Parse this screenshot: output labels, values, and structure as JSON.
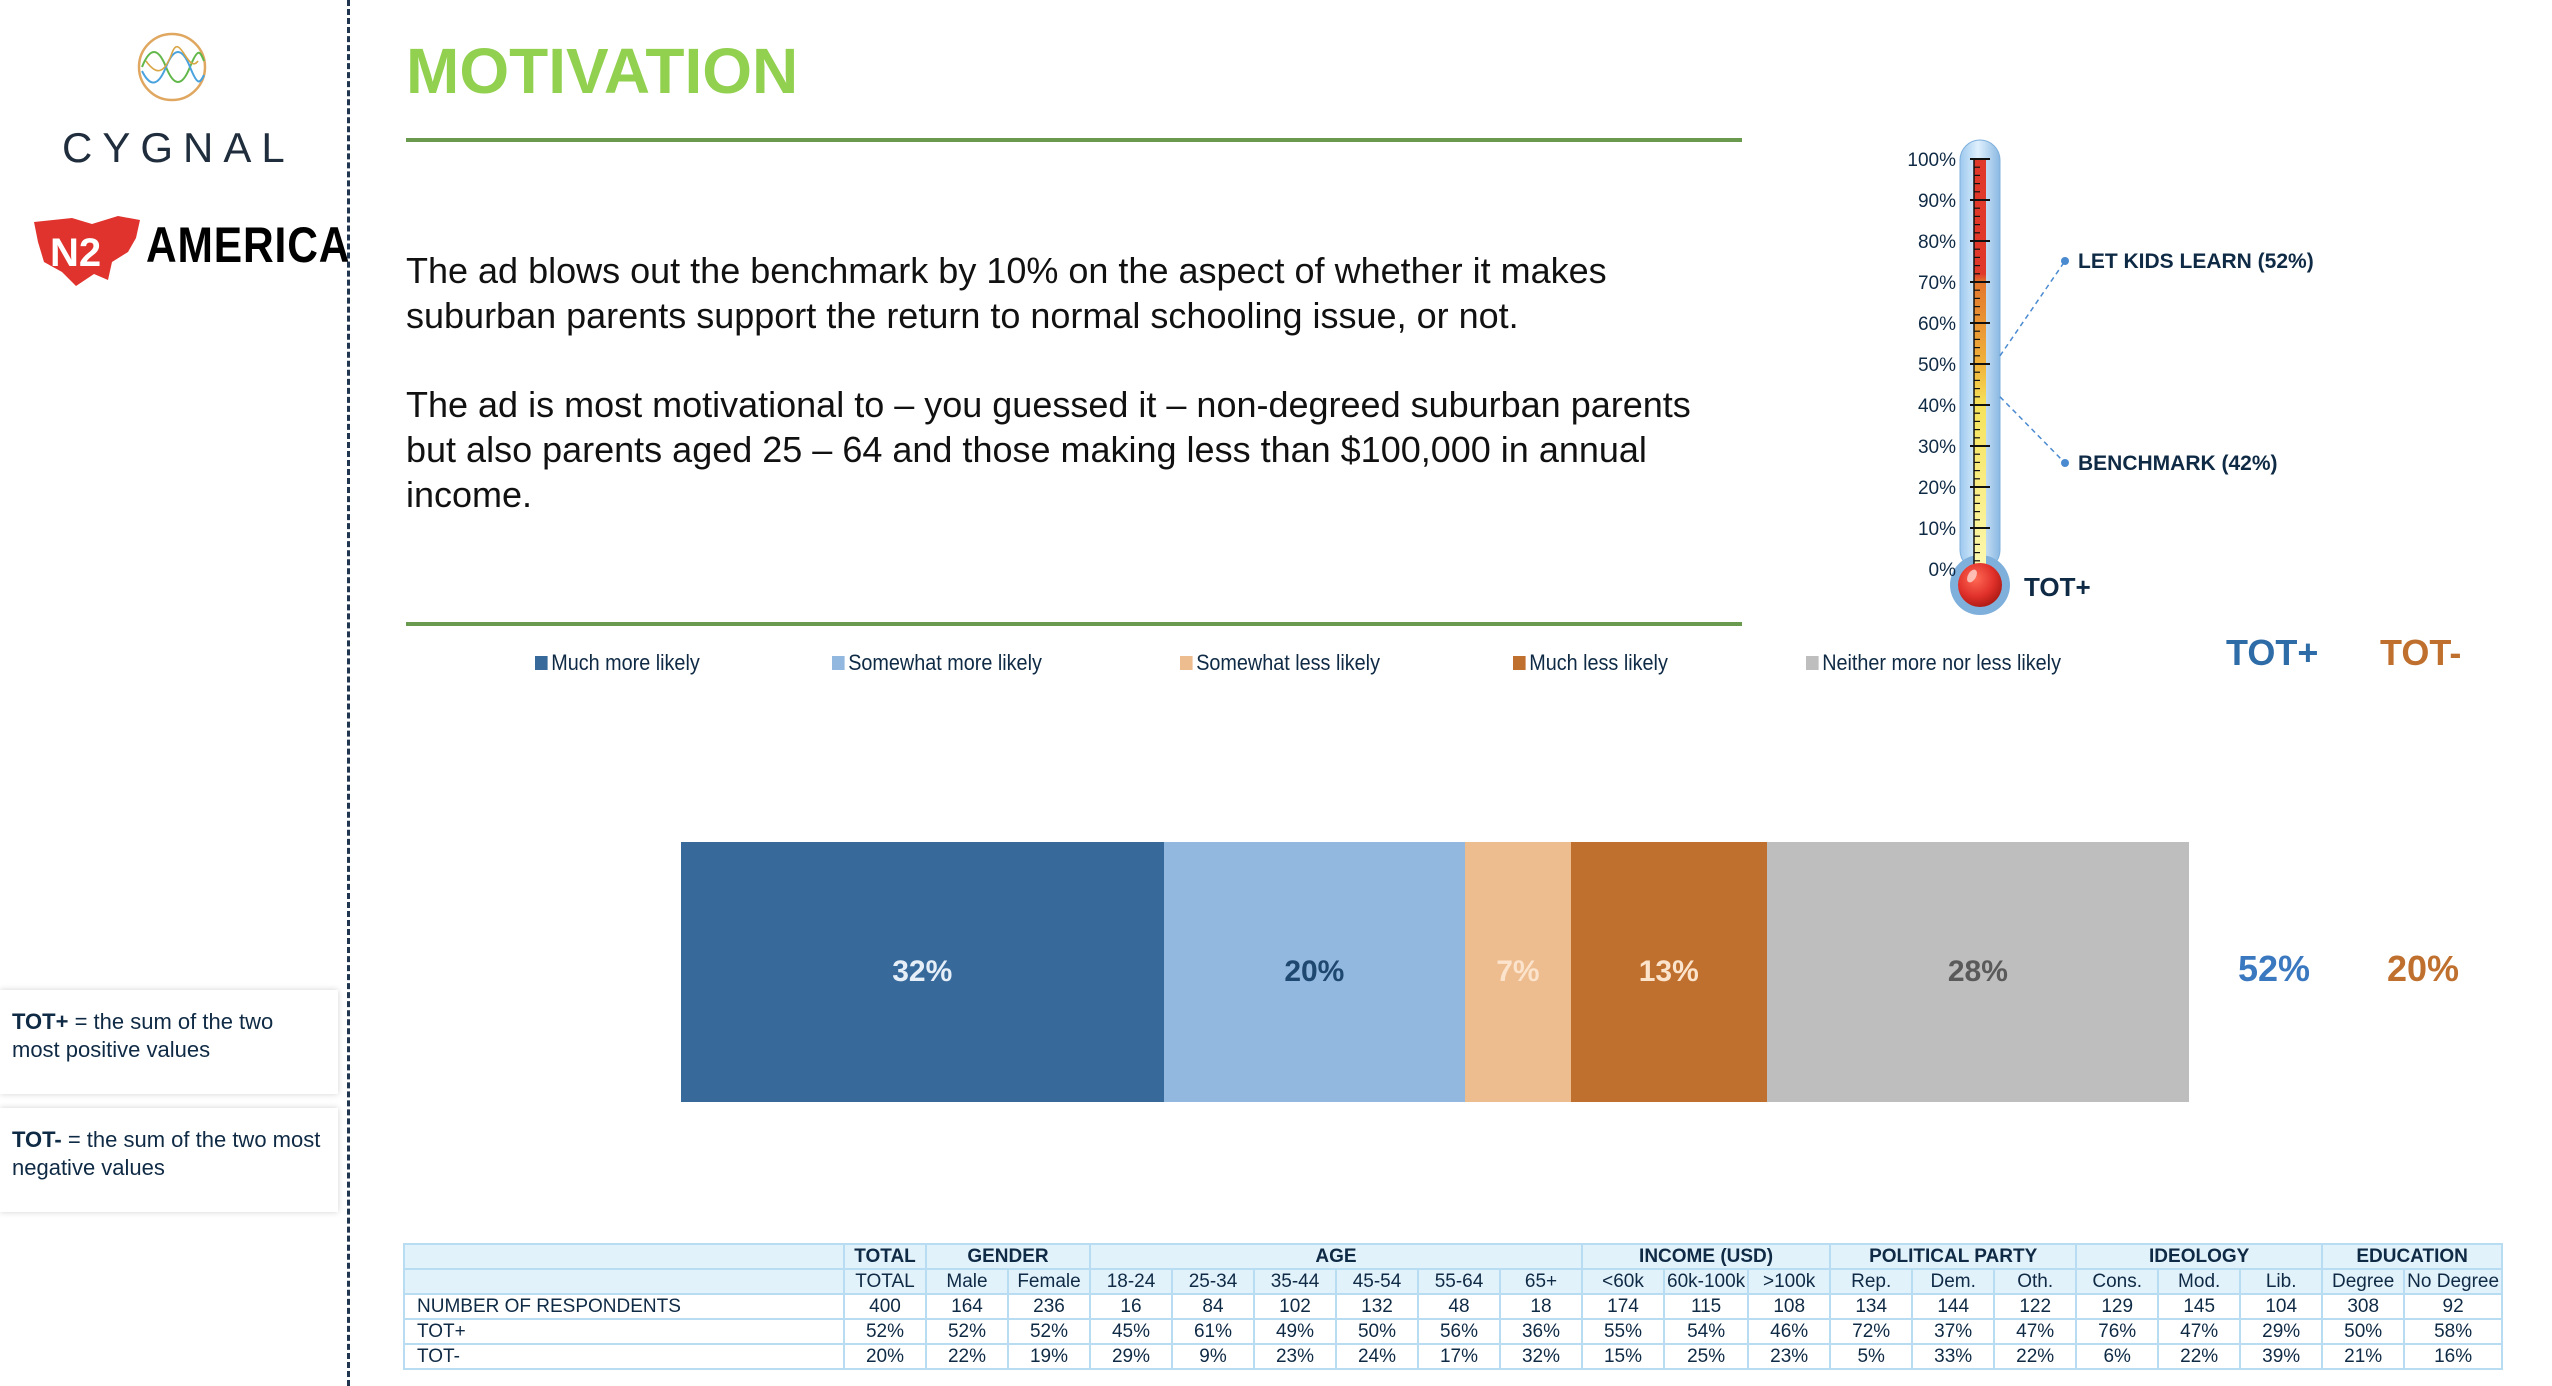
{
  "logos": {
    "cygnal": "CYGNAL",
    "n2_mark": "N2",
    "america": "AMERICA"
  },
  "title": "MOTIVATION",
  "paragraphs": [
    "The ad blows out the benchmark by 10% on the aspect of whether it makes suburban parents support the return to normal schooling issue, or not.",
    "The ad is most motivational to – you guessed it – non-degreed suburban parents but also parents aged 25 – 64 and those making less than $100,000 in annual income."
  ],
  "notes": [
    {
      "term": "TOT+",
      "text": " = the sum of the two most positive values"
    },
    {
      "term": "TOT-",
      "text": " = the sum of the two most negative values"
    }
  ],
  "colors": {
    "title_green": "#92D050",
    "much_more": "#376A9B",
    "somewhat_more": "#93B8DF",
    "somewhat_less": "#EDBC8F",
    "much_less": "#C0702E",
    "neither": "#BEBEBE",
    "tot_plus": "#3A78C0",
    "tot_minus": "#C0702E"
  },
  "chart_data": [
    {
      "type": "bar",
      "orientation": "horizontal-stacked",
      "title": "",
      "categories": [
        "Motivation"
      ],
      "series": [
        {
          "name": "Much more likely",
          "values": [
            32
          ],
          "label": "32%"
        },
        {
          "name": "Somewhat more likely",
          "values": [
            20
          ],
          "label": "20%"
        },
        {
          "name": "Somewhat less likely",
          "values": [
            7
          ],
          "label": "7%"
        },
        {
          "name": "Much less likely",
          "values": [
            13
          ],
          "label": "13%"
        },
        {
          "name": "Neither more nor less likely",
          "values": [
            28
          ],
          "label": "28%"
        }
      ],
      "legend_position": "top",
      "summary": {
        "tot_plus_label": "TOT+",
        "tot_plus_value": "52%",
        "tot_minus_label": "TOT-",
        "tot_minus_value": "20%"
      },
      "xlim": [
        0,
        100
      ]
    },
    {
      "type": "bar",
      "orientation": "thermometer",
      "ylim": [
        0,
        100
      ],
      "yticks": [
        "0%",
        "10%",
        "20%",
        "30%",
        "40%",
        "50%",
        "60%",
        "70%",
        "80%",
        "90%",
        "100%"
      ],
      "xlabel": "TOT+",
      "markers": [
        {
          "label": "LET KIDS LEARN (52%)",
          "value": 52
        },
        {
          "label": "BENCHMARK (42%)",
          "value": 42
        }
      ],
      "grid": false
    }
  ],
  "table": {
    "groups": [
      {
        "label": "",
        "span": 1
      },
      {
        "label": "TOTAL",
        "span": 1
      },
      {
        "label": "GENDER",
        "span": 2
      },
      {
        "label": "AGE",
        "span": 6
      },
      {
        "label": "INCOME (USD)",
        "span": 3
      },
      {
        "label": "POLITICAL PARTY",
        "span": 3
      },
      {
        "label": "IDEOLOGY",
        "span": 3
      },
      {
        "label": "EDUCATION",
        "span": 2
      }
    ],
    "columns": [
      "TOTAL",
      "Male",
      "Female",
      "18-24",
      "25-34",
      "35-44",
      "45-54",
      "55-64",
      "65+",
      "<60k",
      "60k-100k",
      ">100k",
      "Rep.",
      "Dem.",
      "Oth.",
      "Cons.",
      "Mod.",
      "Lib.",
      "Degree",
      "No Degree"
    ],
    "rows": [
      {
        "label": "NUMBER OF RESPONDENTS",
        "values": [
          "400",
          "164",
          "236",
          "16",
          "84",
          "102",
          "132",
          "48",
          "18",
          "174",
          "115",
          "108",
          "134",
          "144",
          "122",
          "129",
          "145",
          "104",
          "308",
          "92"
        ]
      },
      {
        "label": "TOT+",
        "values": [
          "52%",
          "52%",
          "52%",
          "45%",
          "61%",
          "49%",
          "50%",
          "56%",
          "36%",
          "55%",
          "54%",
          "46%",
          "72%",
          "37%",
          "47%",
          "76%",
          "47%",
          "29%",
          "50%",
          "58%"
        ]
      },
      {
        "label": "TOT-",
        "values": [
          "20%",
          "22%",
          "19%",
          "29%",
          "9%",
          "23%",
          "24%",
          "17%",
          "32%",
          "15%",
          "25%",
          "23%",
          "5%",
          "33%",
          "22%",
          "6%",
          "22%",
          "39%",
          "21%",
          "16%"
        ]
      }
    ]
  }
}
